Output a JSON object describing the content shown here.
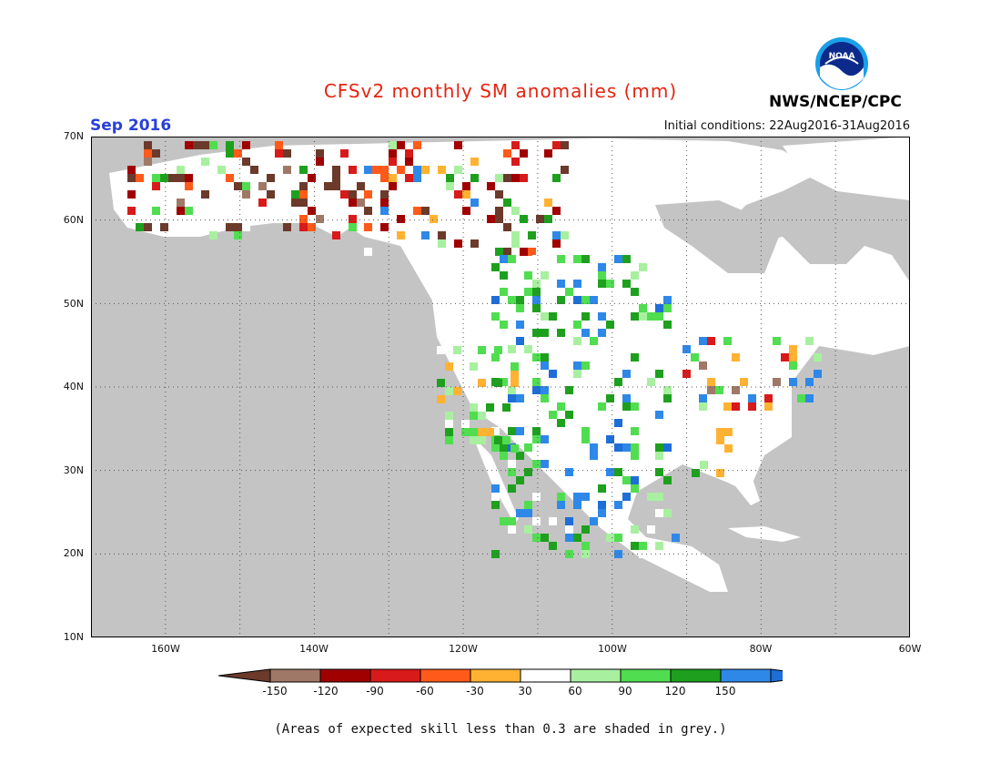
{
  "header": {
    "title": "CFSv2 monthly SM anomalies (mm)",
    "month": "Sep 2016",
    "initial_conditions": "Initial conditions: 22Aug2016-31Aug2016",
    "agency": "NWS/NCEP/CPC",
    "logo_text": "NOAA"
  },
  "map": {
    "lat_ticks": [
      "70N",
      "60N",
      "50N",
      "40N",
      "30N",
      "20N",
      "10N"
    ],
    "lon_ticks": [
      "160W",
      "140W",
      "120W",
      "100W",
      "80W",
      "60W"
    ],
    "lat_range": [
      10,
      70
    ],
    "lon_range": [
      -170,
      -60
    ],
    "ocean_color": "#c4c4c4",
    "land_color": "#ffffff"
  },
  "colorbar": {
    "labels": [
      "-150",
      "-120",
      "-90",
      "-60",
      "-30",
      "30",
      "60",
      "90",
      "120",
      "150"
    ],
    "colors": [
      "#6b3a2a",
      "#a07868",
      "#a00000",
      "#d81a1a",
      "#ff5a1a",
      "#ffb232",
      "#ffffff",
      "#a8f0a0",
      "#50dd50",
      "#1ea01e",
      "#2e88e8",
      "#1e6ed8"
    ]
  },
  "footnote": "(Areas of expected skill less than 0.3 are shaded in grey.)"
}
